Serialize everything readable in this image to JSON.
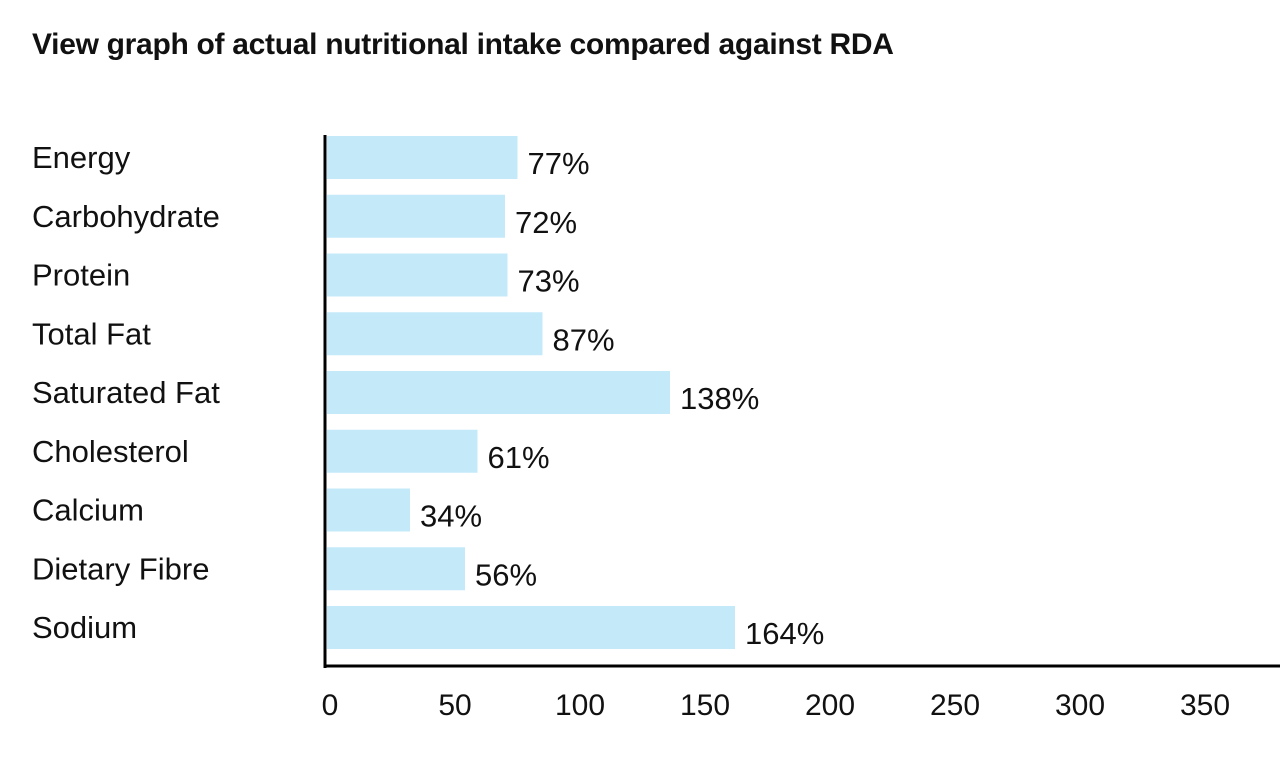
{
  "chart_data": {
    "type": "bar",
    "orientation": "horizontal",
    "title": "View graph of actual nutritional intake compared against RDA",
    "categories": [
      "Energy",
      "Carbohydrate",
      "Protein",
      "Total Fat",
      "Saturated Fat",
      "Cholesterol",
      "Calcium",
      "Dietary Fibre",
      "Sodium"
    ],
    "values": [
      77,
      72,
      73,
      87,
      138,
      61,
      34,
      56,
      164
    ],
    "data_labels": [
      "77%",
      "72%",
      "73%",
      "87%",
      "138%",
      "61%",
      "34%",
      "56%",
      "164%"
    ],
    "xticks": [
      0,
      50,
      100,
      150,
      200,
      250,
      300,
      350
    ],
    "xlim": [
      0,
      380
    ],
    "xlabel": "",
    "ylabel": "",
    "grid": false,
    "legend": "none",
    "colors": {
      "bar": "#c4eafa",
      "axis": "#000000",
      "text": "#111111"
    }
  }
}
